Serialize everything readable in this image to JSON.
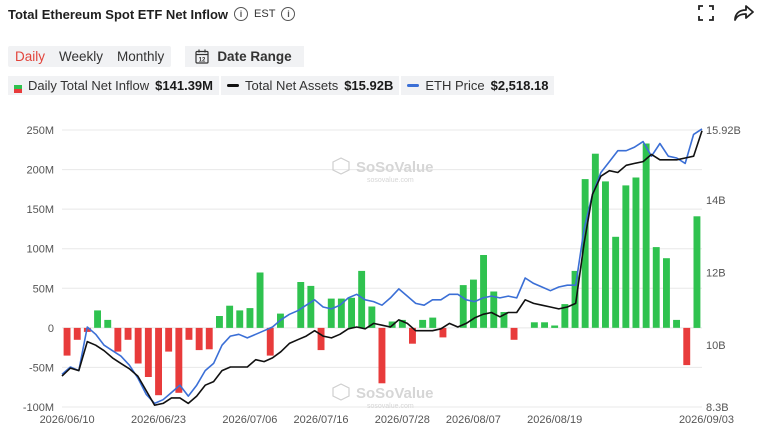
{
  "header": {
    "title": "Total Ethereum Spot ETF Net Inflow",
    "timezone": "EST",
    "info_icon": "info-circle-icon",
    "fullscreen_icon": "expand-icon",
    "share_icon": "share-arrow-icon"
  },
  "tabs": [
    {
      "label": "Daily",
      "active": true
    },
    {
      "label": "Weekly",
      "active": false
    },
    {
      "label": "Monthly",
      "active": false
    }
  ],
  "date_range": {
    "label": "Date Range",
    "icon": "calendar-icon",
    "icon_text": "12"
  },
  "legend": [
    {
      "label": "Daily Total Net Inflow",
      "value": "$141.39M",
      "color": "#2fc24f",
      "alt_color": "#e83b3b"
    },
    {
      "label": "Total Net Assets",
      "value": "$15.92B",
      "color": "#111111"
    },
    {
      "label": "ETH Price",
      "value": "$2,518.18",
      "color": "#3b6fd6"
    }
  ],
  "watermark": {
    "brand": "SoSoValue",
    "url": "sosovalue.com"
  },
  "colors": {
    "positive": "#2fc24f",
    "negative": "#e83b3b",
    "assets": "#111111",
    "price": "#3b6fd6",
    "grid": "#e8e8e8"
  },
  "chart_data": {
    "type": "bar",
    "x_tick_labels": [
      "2026/06/10",
      "2026/06/23",
      "2026/07/06",
      "2026/07/16",
      "2026/07/28",
      "2026/08/07",
      "2026/08/19",
      "2026/09/03"
    ],
    "x_tick_bar_index": [
      0,
      9,
      18,
      25,
      33,
      40,
      48,
      58
    ],
    "left_axis": {
      "ticks": [
        "-100M",
        "-50M",
        "0",
        "50M",
        "100M",
        "150M",
        "200M",
        "250M"
      ],
      "ylim": [
        -100,
        250
      ],
      "unit": "M"
    },
    "right_axis": {
      "ticks": [
        "8.3B",
        "10B",
        "12B",
        "14B",
        "15.92B"
      ],
      "tick_values": [
        8.3,
        10,
        12,
        14,
        15.92
      ],
      "ylim": [
        8.3,
        15.92
      ],
      "unit": "B"
    },
    "series": [
      {
        "name": "Daily Total Net Inflow",
        "axis": "left",
        "values": [
          -35,
          -15,
          -5,
          22,
          10,
          -30,
          -15,
          -45,
          -62,
          -85,
          -30,
          -82,
          -15,
          -28,
          -27,
          15,
          28,
          22,
          25,
          70,
          -35,
          18,
          0,
          58,
          53,
          -28,
          37,
          37,
          38,
          72,
          27,
          -70,
          8,
          10,
          -20,
          10,
          13,
          -12,
          0,
          54,
          61,
          92,
          46,
          20,
          -15,
          0,
          7,
          7,
          3,
          30,
          72,
          188,
          220,
          185,
          115,
          180,
          190,
          233,
          102,
          88,
          10,
          -47,
          141
        ]
      },
      {
        "name": "Total Net Assets",
        "axis": "right",
        "values": [
          9.15,
          9.37,
          9.3,
          10.1,
          10.0,
          9.85,
          9.65,
          9.5,
          9.35,
          9.15,
          8.75,
          8.35,
          8.4,
          8.55,
          8.55,
          8.4,
          8.6,
          8.9,
          9.0,
          9.3,
          9.4,
          9.4,
          9.4,
          9.6,
          9.55,
          9.65,
          9.82,
          10.05,
          10.15,
          10.25,
          10.4,
          10.25,
          10.2,
          10.3,
          10.45,
          10.5,
          10.45,
          10.6,
          10.55,
          10.5,
          10.7,
          10.6,
          10.4,
          10.4,
          10.4,
          10.45,
          10.6,
          10.5,
          10.6,
          10.75,
          10.85,
          10.9,
          10.78,
          10.9,
          10.9,
          11.25,
          11.15,
          11.1,
          11.05,
          11.0,
          11.05,
          11.15,
          12.8,
          14.15,
          14.65,
          14.8,
          14.75,
          14.95,
          15.0,
          15.05,
          15.25,
          15.1,
          15.1,
          15.1,
          15.15,
          15.2,
          15.9
        ]
      },
      {
        "name": "ETH Price",
        "axis": "right",
        "values": [
          9.2,
          9.4,
          9.3,
          10.5,
          10.3,
          10.0,
          9.85,
          9.7,
          9.45,
          9.1,
          8.65,
          8.4,
          8.5,
          8.7,
          8.9,
          8.6,
          8.9,
          9.3,
          9.5,
          10.0,
          10.25,
          10.3,
          10.2,
          10.3,
          10.4,
          10.5,
          10.7,
          10.85,
          10.95,
          11.1,
          11.25,
          11.05,
          11.0,
          11.1,
          11.3,
          11.4,
          11.25,
          11.2,
          11.1,
          11.3,
          11.55,
          11.35,
          11.15,
          11.1,
          11.25,
          11.25,
          11.4,
          11.4,
          11.25,
          11.2,
          11.3,
          11.35,
          11.3,
          11.35,
          11.3,
          11.85,
          11.7,
          11.6,
          11.5,
          11.6,
          11.65,
          11.65,
          13.2,
          14.15,
          14.75,
          15.05,
          15.35,
          15.35,
          15.45,
          15.6,
          15.2,
          15.55,
          15.2,
          15.15,
          15.0,
          15.8,
          15.95
        ]
      }
    ]
  }
}
